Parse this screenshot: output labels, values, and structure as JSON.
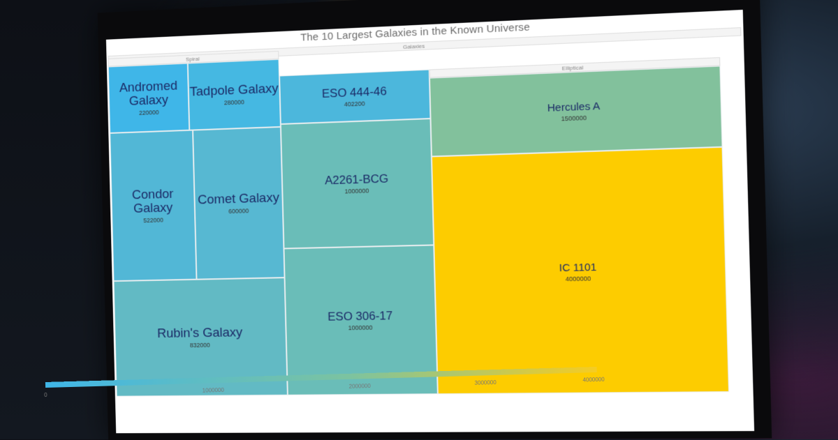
{
  "chart_data": {
    "type": "treemap",
    "title": "The 10 Largest Galaxies in the Known Universe",
    "root": "Galaxies",
    "groups": [
      {
        "name": "Spiral",
        "items": [
          {
            "name": "Andromed Galaxy",
            "value": 220000,
            "color": "#3fb6e8"
          },
          {
            "name": "Tadpole Galaxy",
            "value": 280000,
            "color": "#45b8e2"
          },
          {
            "name": "Condor Galaxy",
            "value": 522000,
            "color": "#52b7d6"
          },
          {
            "name": "Comet Galaxy",
            "value": 600000,
            "color": "#57b8d2"
          },
          {
            "name": "Rubin's Galaxy",
            "value": 832000,
            "color": "#62bac4"
          }
        ]
      },
      {
        "name": "Elliptical",
        "items": [
          {
            "name": "ESO 444-46",
            "value": 402200,
            "color": "#4cb7dc"
          },
          {
            "name": "A2261-BCG",
            "value": 1000000,
            "color": "#6abdb8"
          },
          {
            "name": "ESO 306-17",
            "value": 1000000,
            "color": "#6abdb8"
          },
          {
            "name": "Hercules A",
            "value": 1500000,
            "color": "#82c19c"
          },
          {
            "name": "IC 1101",
            "value": 4000000,
            "color": "#fdcc00"
          }
        ]
      }
    ],
    "colorscale": {
      "min": 0,
      "max": 4000000,
      "colors": [
        "#3fb6e8",
        "#7cc3a0",
        "#f6cc22"
      ],
      "ticks": [
        "0",
        "1000000",
        "2000000",
        "3000000",
        "4000000"
      ]
    }
  }
}
